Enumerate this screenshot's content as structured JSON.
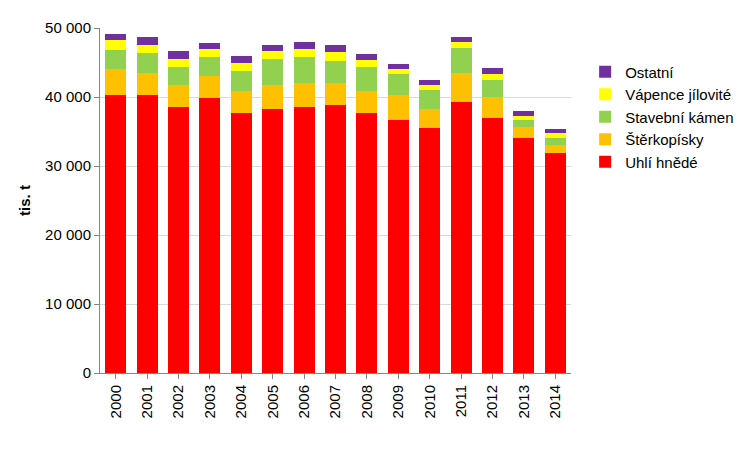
{
  "chart_data": {
    "type": "bar",
    "stacked": true,
    "grid": true,
    "legend": "right",
    "y_label": "tis. t",
    "categories": [
      "2000",
      "2001",
      "2002",
      "2003",
      "2004",
      "2005",
      "2006",
      "2007",
      "2008",
      "2009",
      "2010",
      "2011",
      "2012",
      "2013",
      "2014"
    ],
    "ylim": [
      0,
      50000
    ],
    "yticks": [
      0,
      {
        "value": 10000,
        "label": "10 000"
      },
      {
        "value": 20000,
        "label": "20 000"
      },
      {
        "value": 30000,
        "label": "30 000"
      },
      {
        "value": 40000,
        "label": "40 000"
      },
      {
        "value": 50000,
        "label": "50 000"
      }
    ],
    "series": [
      {
        "name": "Uhlí hnědé",
        "color": "#ff0000",
        "values": [
          40300,
          40300,
          38500,
          39900,
          37700,
          38300,
          38600,
          38900,
          37700,
          36700,
          35500,
          39300,
          37000,
          34100,
          31900
        ]
      },
      {
        "name": "Štěrkopísky",
        "color": "#ffc000",
        "values": [
          3700,
          3200,
          3300,
          3200,
          3200,
          3500,
          3400,
          3100,
          3200,
          3600,
          2800,
          4200,
          3000,
          1600,
          1100
        ]
      },
      {
        "name": "Stavební kámen",
        "color": "#92d050",
        "values": [
          2800,
          2900,
          2600,
          2700,
          2800,
          3700,
          3800,
          3200,
          3400,
          3000,
          2700,
          3600,
          2500,
          1000,
          1000
        ]
      },
      {
        "name": "Vápence jílovité",
        "color": "#ffff00",
        "values": [
          1400,
          1200,
          1100,
          1100,
          1200,
          1100,
          1100,
          1300,
          1000,
          800,
          800,
          900,
          900,
          600,
          800
        ]
      },
      {
        "name": "Ostatní",
        "color": "#7030a0",
        "values": [
          1000,
          1100,
          1100,
          900,
          1000,
          900,
          1100,
          1000,
          900,
          700,
          700,
          700,
          800,
          600,
          500
        ]
      }
    ]
  }
}
